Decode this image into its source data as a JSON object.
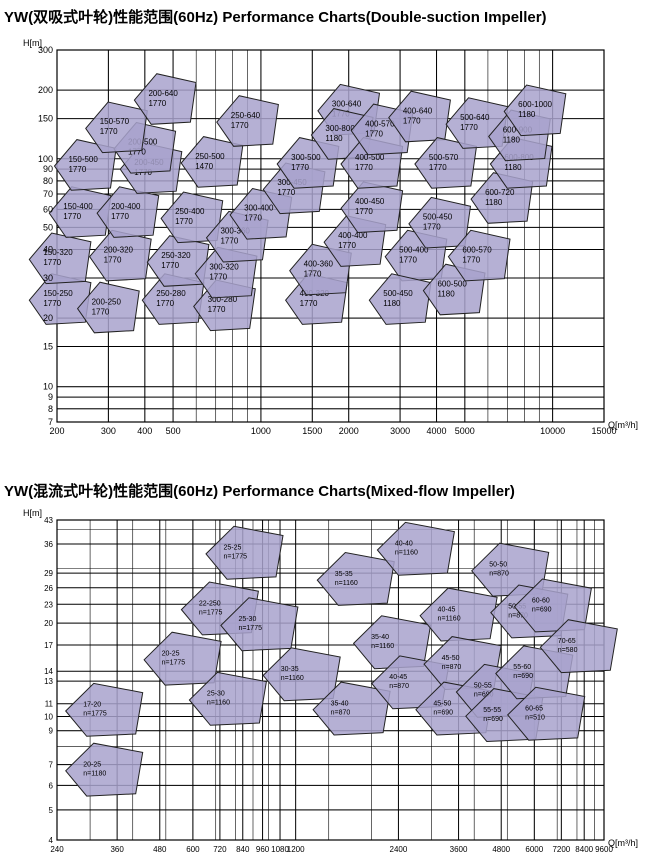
{
  "chart_data": [
    {
      "type": "area",
      "title": "YW(双吸式叶轮)性能范围(60Hz) Performance Charts(Double-suction Impeller)",
      "xlabel": "Q[m³/h]",
      "ylabel": "H[m]",
      "x_scale": "log",
      "y_scale": "log",
      "xlim": [
        200,
        15000
      ],
      "ylim": [
        7,
        300
      ],
      "x_ticks": [
        200,
        300,
        400,
        500,
        1000,
        1500,
        2000,
        3000,
        4000,
        5000,
        10000,
        15000
      ],
      "x_tick_labels": [
        "200",
        "300",
        "400",
        "500",
        "1000",
        "1500",
        "2000",
        "3000",
        "4000",
        "5000",
        "10000",
        "15000"
      ],
      "y_ticks": [
        7,
        8,
        9,
        10,
        15,
        20,
        30,
        40,
        50,
        60,
        70,
        80,
        90,
        100,
        150,
        200,
        300
      ],
      "y_tick_labels": [
        "7",
        "8",
        "9",
        "10",
        "15",
        "20",
        "30",
        "40",
        "50",
        "60",
        "70",
        "80",
        "90",
        "100",
        "150",
        "200",
        "300"
      ],
      "grid": true,
      "regions": [
        {
          "model": "150-250",
          "speed": "1770",
          "q": 205,
          "h": 24.5
        },
        {
          "model": "200-250",
          "speed": "1770",
          "q": 300,
          "h": 22.5
        },
        {
          "model": "250-280",
          "speed": "1770",
          "q": 500,
          "h": 24.5
        },
        {
          "model": "300-280",
          "speed": "1770",
          "q": 750,
          "h": 23
        },
        {
          "model": "150-320",
          "speed": "1770",
          "q": 205,
          "h": 37
        },
        {
          "model": "200-320",
          "speed": "1770",
          "q": 330,
          "h": 38
        },
        {
          "model": "250-320",
          "speed": "1770",
          "q": 520,
          "h": 36
        },
        {
          "model": "300-320",
          "speed": "1770",
          "q": 760,
          "h": 32
        },
        {
          "model": "150-400",
          "speed": "1770",
          "q": 240,
          "h": 59
        },
        {
          "model": "200-400",
          "speed": "1770",
          "q": 350,
          "h": 59
        },
        {
          "model": "250-400",
          "speed": "1770",
          "q": 580,
          "h": 56
        },
        {
          "model": "300-360",
          "speed": "1770",
          "q": 830,
          "h": 46
        },
        {
          "model": "300-400",
          "speed": "1770",
          "q": 1000,
          "h": 58
        },
        {
          "model": "150-500",
          "speed": "1770",
          "q": 250,
          "h": 95
        },
        {
          "model": "200-450",
          "speed": "1770",
          "q": 420,
          "h": 92
        },
        {
          "model": "200-500",
          "speed": "1770",
          "q": 400,
          "h": 113
        },
        {
          "model": "250-500",
          "speed": "1470",
          "q": 680,
          "h": 98
        },
        {
          "model": "150-570",
          "speed": "1770",
          "q": 320,
          "h": 139
        },
        {
          "model": "200-640",
          "speed": "1770",
          "q": 470,
          "h": 185
        },
        {
          "model": "250-640",
          "speed": "1770",
          "q": 900,
          "h": 148
        },
        {
          "model": "300-450",
          "speed": "1770",
          "q": 1300,
          "h": 75
        },
        {
          "model": "300-500",
          "speed": "1770",
          "q": 1450,
          "h": 97
        },
        {
          "model": "300-640",
          "speed": "1770",
          "q": 2000,
          "h": 166
        },
        {
          "model": "300-800",
          "speed": "1180",
          "q": 1900,
          "h": 130
        },
        {
          "model": "400-320",
          "speed": "1770",
          "q": 1550,
          "h": 24.5
        },
        {
          "model": "400-360",
          "speed": "1770",
          "q": 1600,
          "h": 33
        },
        {
          "model": "400-400",
          "speed": "1770",
          "q": 2100,
          "h": 44
        },
        {
          "model": "400-450",
          "speed": "1770",
          "q": 2400,
          "h": 62
        },
        {
          "model": "400-500",
          "speed": "1770",
          "q": 2400,
          "h": 97
        },
        {
          "model": "400-570",
          "speed": "1770",
          "q": 2600,
          "h": 136
        },
        {
          "model": "400-640",
          "speed": "1770",
          "q": 3500,
          "h": 155
        },
        {
          "model": "500-400",
          "speed": "1770",
          "q": 3400,
          "h": 38
        },
        {
          "model": "500-450",
          "speed": "1180",
          "q": 3000,
          "h": 24.5
        },
        {
          "model": "500-450",
          "speed": "1770",
          "q": 4100,
          "h": 53
        },
        {
          "model": "500-570",
          "speed": "1770",
          "q": 4300,
          "h": 97
        },
        {
          "model": "500-640",
          "speed": "1770",
          "q": 5500,
          "h": 145
        },
        {
          "model": "600-500",
          "speed": "1180",
          "q": 4600,
          "h": 27
        },
        {
          "model": "600-570",
          "speed": "1770",
          "q": 5600,
          "h": 38
        },
        {
          "model": "600-720",
          "speed": "1180",
          "q": 6700,
          "h": 68
        },
        {
          "model": "600-800",
          "speed": "1180",
          "q": 7800,
          "h": 97
        },
        {
          "model": "600-900",
          "speed": "1180",
          "q": 7700,
          "h": 128
        },
        {
          "model": "600-1000",
          "speed": "1180",
          "q": 8700,
          "h": 165
        }
      ]
    },
    {
      "type": "area",
      "title": "YW(混流式叶轮)性能范围(60Hz) Performance Charts(Mixed-flow Impeller)",
      "xlabel": "Q[m³/h]",
      "ylabel": "H[m]",
      "x_scale": "log",
      "y_scale": "log",
      "xlim": [
        240,
        9600
      ],
      "ylim": [
        4,
        43
      ],
      "x_ticks": [
        240,
        360,
        480,
        600,
        720,
        840,
        960,
        1080,
        1200,
        2400,
        3600,
        4800,
        6000,
        7200,
        8400,
        9600
      ],
      "x_tick_labels": [
        "240",
        "360",
        "480",
        "600",
        "720",
        "840",
        "960",
        "1080",
        "1200",
        "2400",
        "3600",
        "4800",
        "6000",
        "7200",
        "8400",
        "9600"
      ],
      "y_ticks": [
        4,
        5,
        6,
        7,
        9,
        10,
        11,
        13,
        14,
        17,
        20,
        23,
        26,
        29,
        36,
        43
      ],
      "y_tick_labels": [
        "4",
        "5",
        "6",
        "7",
        "9",
        "10",
        "11",
        "13",
        "14",
        "17",
        "20",
        "23",
        "26",
        "29",
        "36",
        "43"
      ],
      "grid": true,
      "regions": [
        {
          "model": "20-25",
          "speed": "n=1180",
          "q": 330,
          "h": 6.8
        },
        {
          "model": "17-20",
          "speed": "n=1775",
          "q": 330,
          "h": 10.6
        },
        {
          "model": "20-25",
          "speed": "n=1775",
          "q": 560,
          "h": 15.5
        },
        {
          "model": "22-250",
          "speed": "n=1775",
          "q": 720,
          "h": 22.5
        },
        {
          "model": "25-25",
          "speed": "n=1775",
          "q": 850,
          "h": 34
        },
        {
          "model": "25-30",
          "speed": "n=1160",
          "q": 760,
          "h": 11.5
        },
        {
          "model": "25-30",
          "speed": "n=1775",
          "q": 940,
          "h": 20
        },
        {
          "model": "30-35",
          "speed": "n=1160",
          "q": 1250,
          "h": 13.8
        },
        {
          "model": "35-35",
          "speed": "n=1160",
          "q": 1800,
          "h": 28
        },
        {
          "model": "35-40",
          "speed": "n=870",
          "q": 1750,
          "h": 10.7
        },
        {
          "model": "35-40",
          "speed": "n=1160",
          "q": 2300,
          "h": 17.5
        },
        {
          "model": "40-40",
          "speed": "n=1160",
          "q": 2700,
          "h": 35
        },
        {
          "model": "40-45",
          "speed": "n=870",
          "q": 2600,
          "h": 13
        },
        {
          "model": "40-45",
          "speed": "n=1160",
          "q": 3600,
          "h": 21.5
        },
        {
          "model": "45-50",
          "speed": "n=870",
          "q": 3700,
          "h": 15
        },
        {
          "model": "45-50",
          "speed": "n=690",
          "q": 3500,
          "h": 10.7
        },
        {
          "model": "50-50",
          "speed": "n=870",
          "q": 5100,
          "h": 30
        },
        {
          "model": "50-55",
          "speed": "n=690",
          "q": 4600,
          "h": 12.2
        },
        {
          "model": "50-55",
          "speed": "n=870",
          "q": 5800,
          "h": 22
        },
        {
          "model": "55-55",
          "speed": "n=690",
          "q": 4900,
          "h": 10.2
        },
        {
          "model": "55-60",
          "speed": "n=690",
          "q": 6000,
          "h": 14
        },
        {
          "model": "60-60",
          "speed": "n=690",
          "q": 6800,
          "h": 23
        },
        {
          "model": "60-65",
          "speed": "n=510",
          "q": 6500,
          "h": 10.3
        },
        {
          "model": "70-65",
          "speed": "n=580",
          "q": 8100,
          "h": 17
        }
      ]
    }
  ]
}
